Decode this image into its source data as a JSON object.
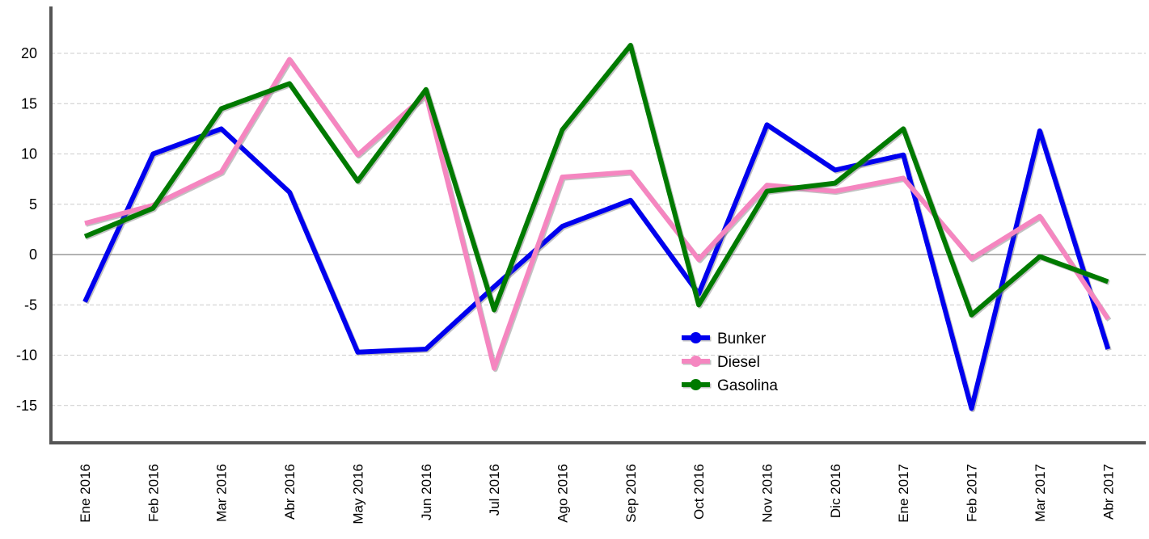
{
  "chart_data": {
    "type": "line",
    "title": "",
    "xlabel": "",
    "ylabel": "",
    "categories": [
      "Ene 2016",
      "Feb 2016",
      "Mar 2016",
      "Abr 2016",
      "May 2016",
      "Jun 2016",
      "Jul 2016",
      "Ago 2016",
      "Sep 2016",
      "Oct 2016",
      "Nov 2016",
      "Dic 2016",
      "Ene 2017",
      "Feb 2017",
      "Mar 2017",
      "Abr 2017"
    ],
    "y_ticks": [
      "-15",
      "-10",
      "-5",
      "0",
      "5",
      "10",
      "15",
      "20"
    ],
    "ylim": [
      -19,
      25
    ],
    "grid": true,
    "legend_position": "center-right",
    "series": [
      {
        "name": "Bunker",
        "color": "#0000ee",
        "values": [
          -4.7,
          10.0,
          12.5,
          6.2,
          -9.7,
          -9.4,
          -3.2,
          2.8,
          5.4,
          -3.9,
          12.9,
          8.4,
          9.9,
          -15.3,
          12.3,
          -9.4
        ]
      },
      {
        "name": "Diesel",
        "color": "#f586c0",
        "values": [
          3.1,
          4.9,
          8.2,
          19.4,
          9.9,
          15.9,
          -11.3,
          7.7,
          8.2,
          -0.5,
          6.9,
          6.3,
          7.6,
          -0.4,
          3.8,
          -6.4
        ]
      },
      {
        "name": "Gasolina",
        "color": "#007a00",
        "values": [
          1.8,
          4.6,
          14.5,
          17.0,
          7.3,
          16.4,
          -5.5,
          12.4,
          20.8,
          -5.0,
          6.3,
          7.1,
          12.5,
          -6.0,
          -0.2,
          -2.7
        ]
      }
    ]
  }
}
